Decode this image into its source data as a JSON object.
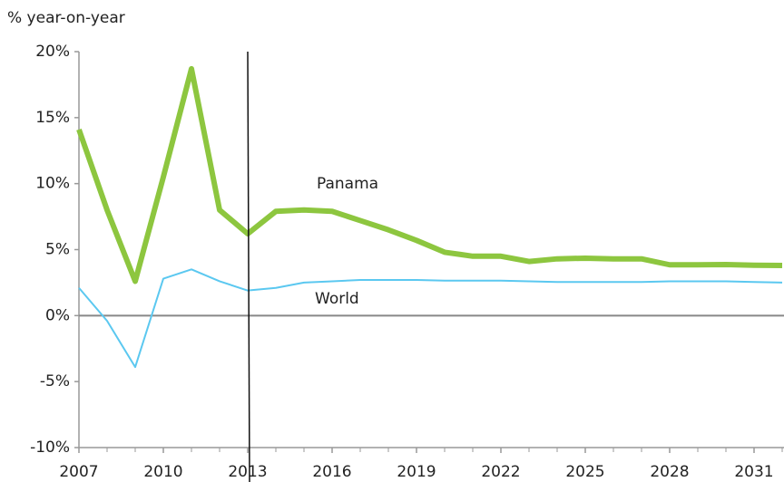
{
  "chart_data": {
    "type": "line",
    "ylabel": "% year-on-year",
    "x": [
      2007,
      2008,
      2009,
      2010,
      2011,
      2012,
      2013,
      2014,
      2015,
      2016,
      2017,
      2018,
      2019,
      2020,
      2021,
      2022,
      2023,
      2024,
      2025,
      2026,
      2027,
      2028,
      2029,
      2030,
      2031,
      2032
    ],
    "series": [
      {
        "name": "Panama",
        "color": "#8dc63f",
        "values": [
          14.1,
          8.0,
          2.6,
          10.5,
          18.7,
          8.0,
          6.2,
          7.9,
          8.0,
          7.9,
          7.2,
          6.5,
          5.7,
          4.8,
          4.5,
          4.5,
          4.1,
          4.3,
          4.35,
          4.3,
          4.3,
          3.85,
          3.85,
          3.87,
          3.82,
          3.8
        ]
      },
      {
        "name": "World",
        "color": "#5bc8f0",
        "values": [
          2.1,
          -0.4,
          -3.9,
          2.8,
          3.5,
          2.6,
          1.9,
          2.1,
          2.5,
          2.6,
          2.7,
          2.7,
          2.7,
          2.65,
          2.65,
          2.65,
          2.6,
          2.55,
          2.55,
          2.55,
          2.55,
          2.6,
          2.6,
          2.6,
          2.55,
          2.5
        ]
      }
    ],
    "xlim": [
      2007,
      2032
    ],
    "xticks": [
      2007,
      2010,
      2013,
      2016,
      2019,
      2022,
      2025,
      2028,
      2031
    ],
    "ylim": [
      -10,
      20
    ],
    "yticks": [
      {
        "value": -10,
        "label": "-10%"
      },
      {
        "value": -5,
        "label": "-5%"
      },
      {
        "value": 0,
        "label": "0%"
      },
      {
        "value": 5,
        "label": "5%"
      },
      {
        "value": 10,
        "label": "10%"
      },
      {
        "value": 15,
        "label": "15%"
      },
      {
        "value": 20,
        "label": "20%"
      }
    ],
    "vline": 2013
  }
}
